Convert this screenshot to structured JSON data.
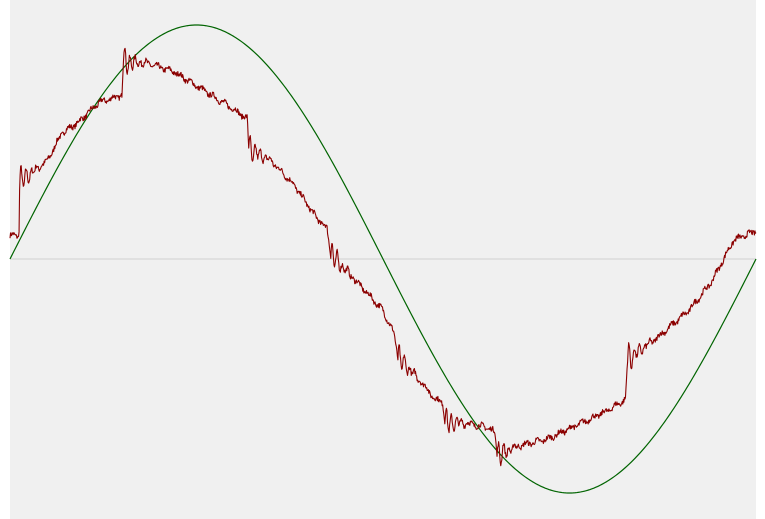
{
  "chart_data": {
    "type": "line",
    "title": "",
    "xlabel": "",
    "ylabel": "",
    "xlim": [
      0,
      1
    ],
    "ylim": [
      -1.1,
      1.1
    ],
    "grid": false,
    "legend": "none",
    "zero_line": true,
    "series": [
      {
        "name": "",
        "color": "#006400",
        "style": "smooth-sine",
        "amplitude": 1.0,
        "x": [
          0.0,
          0.05,
          0.1,
          0.15,
          0.2,
          0.25,
          0.3,
          0.35,
          0.4,
          0.45,
          0.5,
          0.55,
          0.6,
          0.65,
          0.7,
          0.75,
          0.8,
          0.85,
          0.9,
          0.95,
          1.0
        ],
        "values": [
          0.0,
          0.31,
          0.59,
          0.81,
          0.95,
          1.0,
          0.95,
          0.81,
          0.59,
          0.31,
          0.0,
          -0.31,
          -0.59,
          -0.81,
          -0.95,
          -1.0,
          -0.95,
          -0.81,
          -0.59,
          -0.31,
          0.0
        ]
      },
      {
        "name": "",
        "color": "#8b0000",
        "style": "noisy-stepped",
        "x": [
          0.0,
          0.012,
          0.013,
          0.05,
          0.07,
          0.09,
          0.12,
          0.15,
          0.152,
          0.18,
          0.22,
          0.26,
          0.3,
          0.318,
          0.32,
          0.35,
          0.38,
          0.41,
          0.425,
          0.43,
          0.46,
          0.48,
          0.5,
          0.515,
          0.52,
          0.55,
          0.57,
          0.58,
          0.583,
          0.61,
          0.64,
          0.65,
          0.653,
          0.68,
          0.72,
          0.76,
          0.8,
          0.825,
          0.828,
          0.87,
          0.91,
          0.94,
          0.97,
          1.0
        ],
        "values": [
          0.1,
          0.1,
          0.33,
          0.42,
          0.54,
          0.58,
          0.67,
          0.7,
          0.84,
          0.84,
          0.8,
          0.72,
          0.64,
          0.6,
          0.47,
          0.42,
          0.32,
          0.18,
          0.13,
          0.02,
          -0.08,
          -0.15,
          -0.22,
          -0.32,
          -0.42,
          -0.52,
          -0.6,
          -0.61,
          -0.7,
          -0.7,
          -0.72,
          -0.74,
          -0.84,
          -0.8,
          -0.77,
          -0.71,
          -0.65,
          -0.6,
          -0.43,
          -0.33,
          -0.22,
          -0.1,
          0.08,
          0.12
        ]
      }
    ]
  }
}
